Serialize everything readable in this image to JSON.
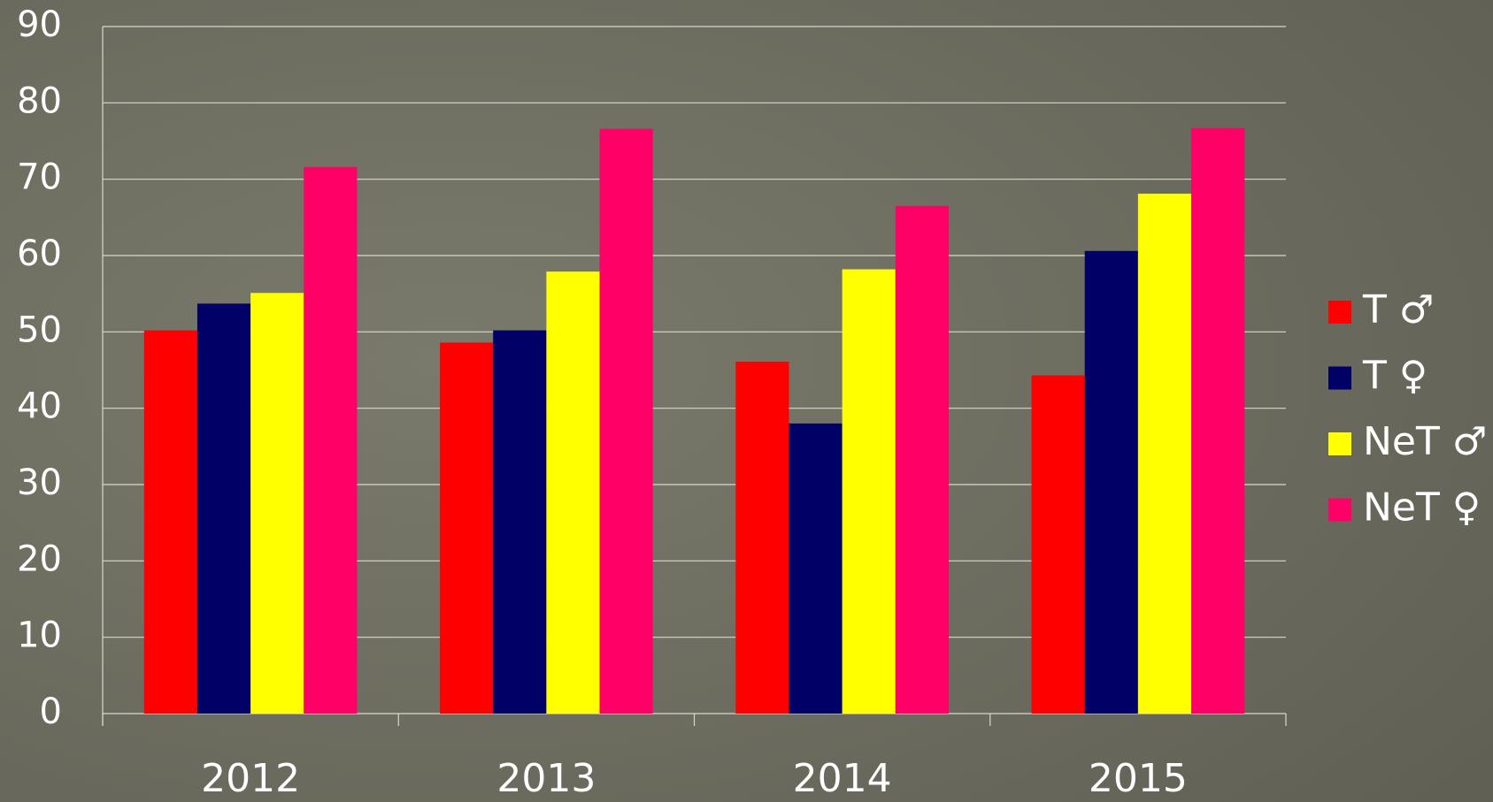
{
  "chart_data": {
    "type": "bar",
    "categories": [
      "2012",
      "2013",
      "2014",
      "2015"
    ],
    "series": [
      {
        "name": "T ♂",
        "color": "#ff0000",
        "values": [
          50.2,
          48.6,
          46.1,
          44.3
        ]
      },
      {
        "name": "T ♀",
        "color": "#000066",
        "values": [
          53.7,
          50.2,
          38.0,
          60.6
        ]
      },
      {
        "name": "NeT ♂",
        "color": "#ffff00",
        "values": [
          55.1,
          57.9,
          58.2,
          68.1
        ]
      },
      {
        "name": "NeT ♀",
        "color": "#ff0066",
        "values": [
          71.6,
          76.6,
          66.5,
          76.7
        ]
      }
    ],
    "ylim": [
      0,
      90
    ],
    "yticks": [
      0,
      10,
      20,
      30,
      40,
      50,
      60,
      70,
      80,
      90
    ],
    "grid": true,
    "legend": "right"
  }
}
